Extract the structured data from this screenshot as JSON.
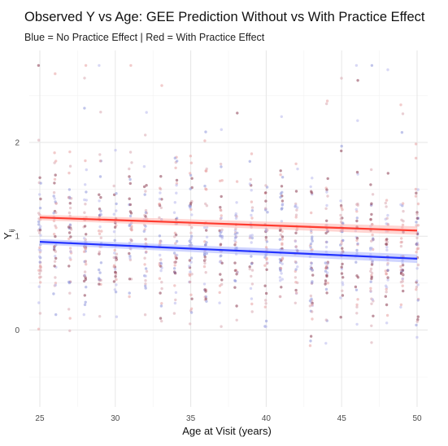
{
  "chart_data": {
    "type": "scatter",
    "title": "Observed Y vs Age: GEE Prediction Without vs With Practice Effect",
    "subtitle": "Blue = No Practice Effect | Red = With Practice Effect",
    "xlabel": "Age at Visit (years)",
    "ylabel_main": "Y",
    "ylabel_sub": "ij",
    "xlim": [
      24.3,
      50.7
    ],
    "ylim": [
      -0.82,
      2.98
    ],
    "x_ticks": [
      25,
      30,
      35,
      40,
      45,
      50
    ],
    "y_ticks": [
      0,
      1,
      2
    ],
    "grid": true,
    "point_colors": [
      "#e8a0a0",
      "#8e96da",
      "#8a3a50",
      "#b8b8ec",
      "#d8a8b0"
    ],
    "x_range_sampled": [
      25,
      50
    ],
    "fit_lines": [
      {
        "color": "#2233ff",
        "ribbon": "#a9b3ff",
        "x": [
          25,
          50
        ],
        "y": [
          0.94,
          0.76
        ]
      },
      {
        "color": "#ff3b2f",
        "ribbon": "#ffb3ad",
        "x": [
          25,
          50
        ],
        "y": [
          1.2,
          1.06
        ]
      }
    ]
  }
}
